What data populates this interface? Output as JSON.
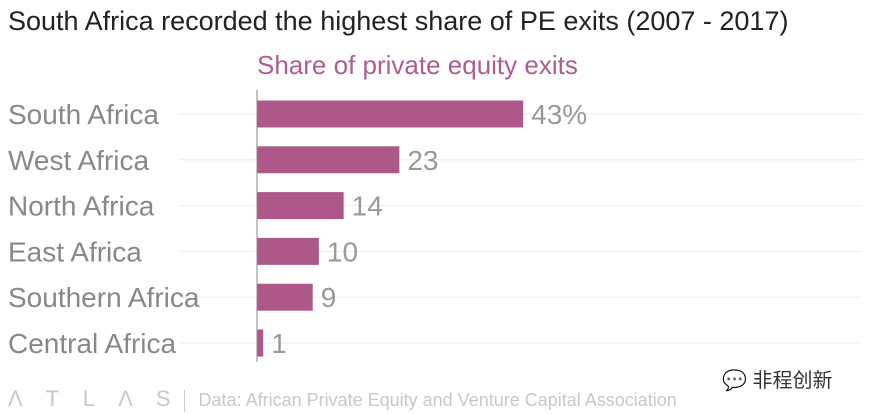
{
  "chart_data": {
    "type": "bar",
    "orientation": "horizontal",
    "title": "South Africa recorded the highest share of PE exits (2007 - 2017)",
    "subtitle": "Share of private equity exits",
    "categories": [
      "South Africa",
      "West Africa",
      "North Africa",
      "East Africa",
      "Southern Africa",
      "Central Africa"
    ],
    "values": [
      43,
      23,
      14,
      10,
      9,
      1
    ],
    "data_labels": [
      "43%",
      "23",
      "14",
      "10",
      "9",
      "1"
    ],
    "unit": "%",
    "xlim": [
      0,
      100
    ],
    "bar_color": "#ad5889",
    "grid": true
  },
  "footer": {
    "logo": "ATLAS",
    "source": "Data: African Private Equity and Venture Capital Association"
  },
  "watermark": "非程创新"
}
